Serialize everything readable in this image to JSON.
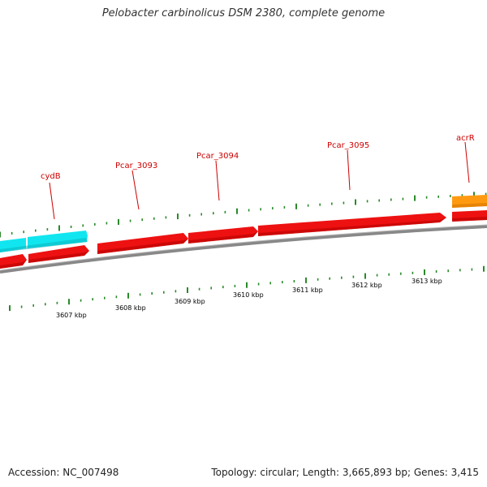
{
  "title": "Pelobacter carbinolicus DSM 2380, complete genome",
  "footer": {
    "accession": "Accession: NC_007498",
    "summary": "Topology: circular; Length: 3,665,893 bp; Genes: 3,415"
  },
  "colors": {
    "forward_gene": "#ee1111",
    "reverse_gene": "#ee1111",
    "cyan_gene": "#11e6f0",
    "orange_gene": "#ff9a10",
    "backbone": "#888888",
    "tick": "#2a8a2a",
    "label": "#cc0000"
  },
  "gene_labels": [
    "cydB",
    "Pcar_3093",
    "Pcar_3094",
    "Pcar_3095",
    "acrR"
  ],
  "kbp_labels": [
    "3607 kbp",
    "3608 kbp",
    "3609 kbp",
    "3610 kbp",
    "3611 kbp",
    "3612 kbp",
    "3613 kbp"
  ]
}
